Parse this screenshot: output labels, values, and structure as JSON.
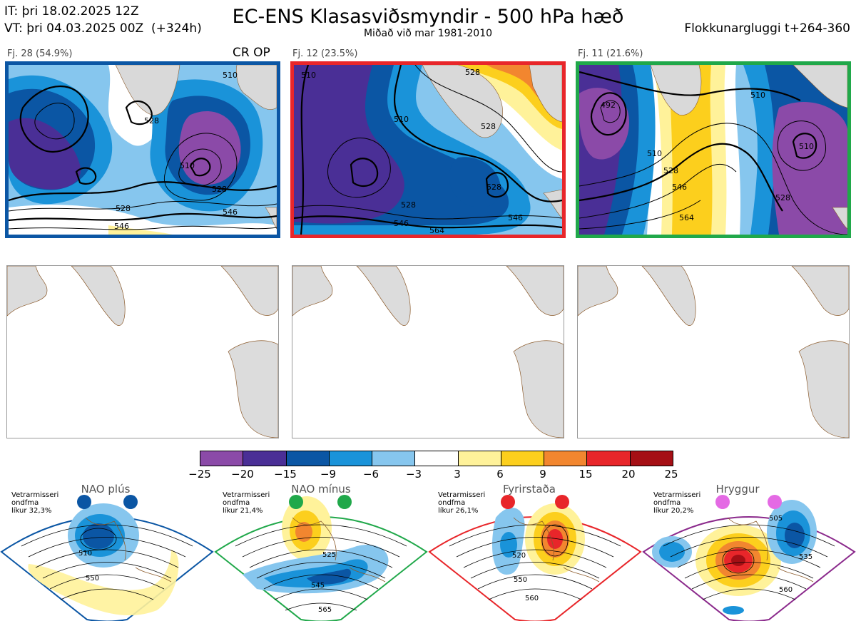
{
  "header": {
    "it_line": "IT: þri 18.02.2025 12Z",
    "vt_line": "VT: þri 04.03.2025 00Z  (+324h)",
    "title": "EC-ENS Klasasviðsmyndir - 500 hPa hæð",
    "subtitle": "Miðað við mar 1981-2010",
    "window": "Flokkunargluggi t+264-360"
  },
  "clusters": [
    {
      "label": "Fj. 28 (54.9%)",
      "badge": "CR OP",
      "frame_color": "#0b56a4",
      "contour_labels": [
        "510",
        "528",
        "510",
        "528",
        "528",
        "546",
        "546"
      ]
    },
    {
      "label": "Fj. 12 (23.5%)",
      "badge": "",
      "frame_color": "#e8262a",
      "contour_labels": [
        "528",
        "510",
        "528",
        "510",
        "528",
        "528",
        "546",
        "546",
        "564"
      ]
    },
    {
      "label": "Fj. 11 (21.6%)",
      "badge": "",
      "frame_color": "#20a84a",
      "contour_labels": [
        "492",
        "510",
        "510",
        "528",
        "546",
        "564",
        "510",
        "528"
      ]
    }
  ],
  "colorbar": {
    "ticks": [
      "−25",
      "−20",
      "−15",
      "−9",
      "−6",
      "−3",
      "3",
      "6",
      "9",
      "15",
      "20",
      "25"
    ],
    "colors": [
      "#8b4aa8",
      "#4a2f96",
      "#0b56a4",
      "#1a93d9",
      "#86c6ee",
      "#ffffff",
      "#fff29a",
      "#fccf1d",
      "#f2862f",
      "#e8262a",
      "#a50f15"
    ]
  },
  "schemes": [
    {
      "name": "NAO plús",
      "note": "Vetrarmisseri\nondfma\nlíkur 32,3%",
      "dot_color": "#0b56a4",
      "frame_color": "#0b56a4",
      "contours": [
        "510",
        "550"
      ]
    },
    {
      "name": "NAO mínus",
      "note": "Vetrarmisseri\nondfma\nlíkur 21,4%",
      "dot_color": "#20a84a",
      "frame_color": "#20a84a",
      "contours": [
        "525",
        "545",
        "565"
      ]
    },
    {
      "name": "Fyrirstaða",
      "note": "Vetrarmisseri\nondfma\nlíkur 26,1%",
      "dot_color": "#e8262a",
      "frame_color": "#e8262a",
      "contours": [
        "520",
        "550",
        "560"
      ]
    },
    {
      "name": "Hryggur",
      "note": "Vetrarmisseri\nondfma\nlíkur 20,2%",
      "dot_color": "#e46ae4",
      "frame_color": "#8b2a8c",
      "contours": [
        "505",
        "535",
        "560"
      ]
    }
  ]
}
